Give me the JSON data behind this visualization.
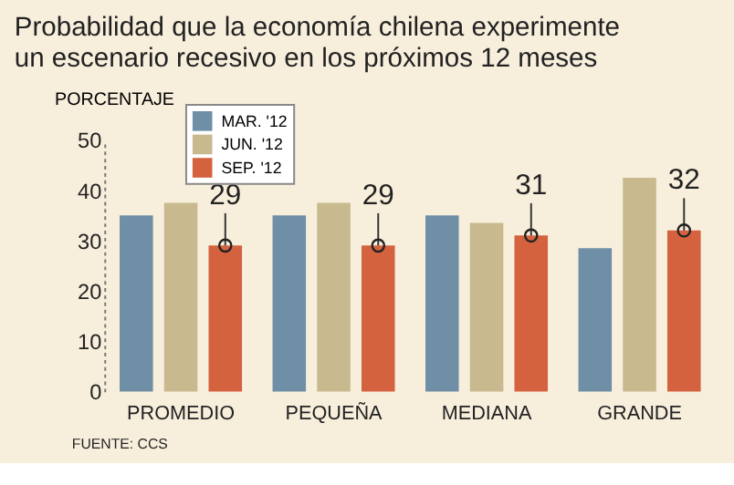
{
  "chart_data": {
    "type": "bar",
    "title": "Probabilidad que la economía chilena experimente un escenario recesivo en los próximos 12 meses",
    "ylabel": "PORCENTAJE",
    "categories": [
      "PROMEDIO",
      "PEQUEÑA",
      "MEDIANA",
      "GRANDE"
    ],
    "series": [
      {
        "name": "MAR. '12",
        "color": "#6f8fa6",
        "values": [
          35,
          35,
          35,
          28.5
        ]
      },
      {
        "name": "JUN. '12",
        "color": "#c8b98e",
        "values": [
          37.5,
          37.5,
          33.5,
          42.5
        ]
      },
      {
        "name": "SEP. '12",
        "color": "#d4623f",
        "values": [
          29,
          29,
          31,
          32
        ],
        "value_labels": [
          "29",
          "29",
          "31",
          "32"
        ],
        "marker": "circle"
      }
    ],
    "ylim": [
      0,
      50
    ],
    "yticks": [
      0,
      10,
      20,
      30,
      40,
      50
    ],
    "grid": false,
    "legend": "top left",
    "annotations": [
      "FUENTE: CCS"
    ]
  }
}
